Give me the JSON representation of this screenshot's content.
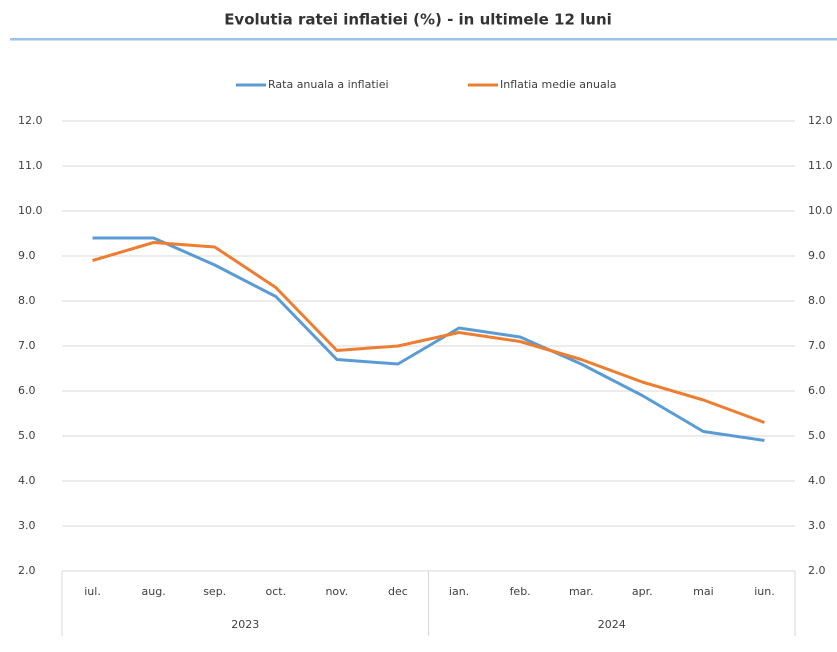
{
  "chart_data": {
    "type": "line",
    "title": "Evolutia ratei inflatiei (%) - in ultimele 12 luni",
    "groups": [
      {
        "label": "2023",
        "categories": [
          "iul.",
          "aug.",
          "sep.",
          "oct.",
          "nov.",
          "dec"
        ]
      },
      {
        "label": "2024",
        "categories": [
          "ian.",
          "feb.",
          "mar.",
          "apr.",
          "mai",
          "iun."
        ]
      }
    ],
    "series": [
      {
        "name": "Rata anuala a inflatiei",
        "color": "#5b9bd5",
        "values": [
          9.4,
          9.4,
          8.8,
          8.1,
          6.7,
          6.6,
          7.4,
          7.2,
          6.6,
          5.9,
          5.1,
          4.9
        ]
      },
      {
        "name": "Inflatia medie anuala",
        "color": "#ed7d31",
        "values": [
          8.9,
          9.3,
          9.2,
          8.3,
          6.9,
          7.0,
          7.3,
          7.1,
          6.7,
          6.2,
          5.8,
          5.3
        ]
      }
    ],
    "ylim": [
      2,
      12
    ],
    "yticks": [
      {
        "value": 2,
        "label": "2.0"
      },
      {
        "value": 3,
        "label": "3.0"
      },
      {
        "value": 4,
        "label": "4.0"
      },
      {
        "value": 5,
        "label": "5.0"
      },
      {
        "value": 6,
        "label": "6.0"
      },
      {
        "value": 7,
        "label": "7.0"
      },
      {
        "value": 8,
        "label": "8.0"
      },
      {
        "value": 9,
        "label": "9.0"
      },
      {
        "value": 10,
        "label": "10.0"
      },
      {
        "value": 11,
        "label": "11.0"
      },
      {
        "value": 12,
        "label": "12.0"
      }
    ],
    "y2lim": [
      2,
      12
    ],
    "y2ticks": [
      {
        "value": 2,
        "label": "2.0"
      },
      {
        "value": 3,
        "label": "3.0"
      },
      {
        "value": 4,
        "label": "4.0"
      },
      {
        "value": 5,
        "label": "5.0"
      },
      {
        "value": 6,
        "label": "6.0"
      },
      {
        "value": 7,
        "label": "7.0"
      },
      {
        "value": 8,
        "label": "8.0"
      },
      {
        "value": 9,
        "label": "9.0"
      },
      {
        "value": 10,
        "label": "10.0"
      },
      {
        "value": 11,
        "label": "11.0"
      },
      {
        "value": 12,
        "label": "12.0"
      }
    ],
    "grid": true,
    "legend": "top"
  }
}
